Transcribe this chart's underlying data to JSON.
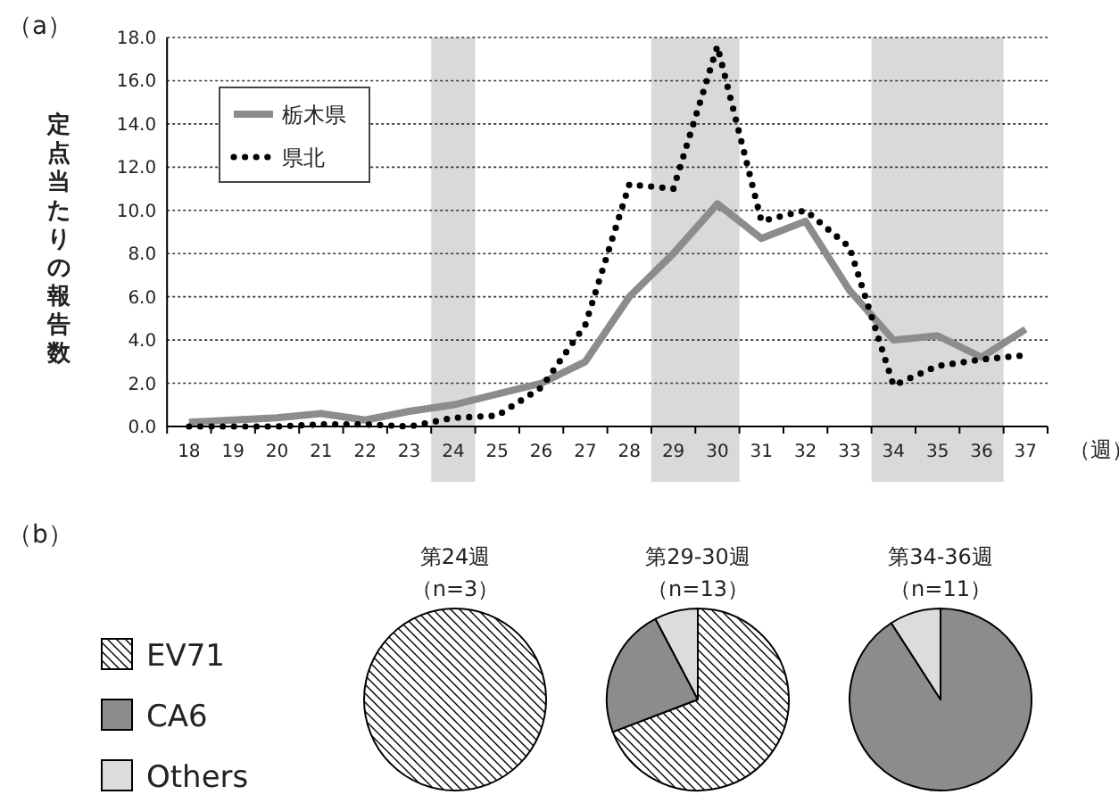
{
  "chart_data": [
    {
      "type": "line",
      "title": "（a）",
      "xlabel": "（週）",
      "ylabel": "定点当たりの報告数",
      "x": [
        18,
        19,
        20,
        21,
        22,
        23,
        24,
        25,
        26,
        27,
        28,
        29,
        30,
        31,
        32,
        33,
        34,
        35,
        36,
        37
      ],
      "xlim": [
        17.5,
        37.5
      ],
      "xticks": [
        18,
        19,
        20,
        21,
        22,
        23,
        24,
        25,
        26,
        27,
        28,
        29,
        30,
        31,
        32,
        33,
        34,
        35,
        36,
        37
      ],
      "ylim": [
        0,
        18
      ],
      "yticks": [
        {
          "value": 0,
          "label": "0.0"
        },
        {
          "value": 2,
          "label": "2.0"
        },
        {
          "value": 4,
          "label": "4.0"
        },
        {
          "value": 6,
          "label": "6.0"
        },
        {
          "value": 8,
          "label": "8.0"
        },
        {
          "value": 10,
          "label": "10.0"
        },
        {
          "value": 12,
          "label": "12.0"
        },
        {
          "value": 14,
          "label": "14.0"
        },
        {
          "value": 16,
          "label": "16.0"
        },
        {
          "value": 18,
          "label": "18.0"
        }
      ],
      "grid": "y",
      "legend": "top left",
      "marker": "none",
      "bands": [
        {
          "axis": "x",
          "from": 23.5,
          "to": 24.5,
          "color": "#d9d9d9"
        },
        {
          "axis": "x",
          "from": 28.5,
          "to": 30.5,
          "color": "#d9d9d9"
        },
        {
          "axis": "x",
          "from": 33.5,
          "to": 36.5,
          "color": "#d9d9d9"
        }
      ],
      "series": [
        {
          "name": "栃木県",
          "color": "#8c8c8c",
          "line_style": "solid",
          "values": [
            0.2,
            0.3,
            0.4,
            0.6,
            0.3,
            0.7,
            1.0,
            1.5,
            2.0,
            3.0,
            6.0,
            8.0,
            10.3,
            8.7,
            9.5,
            6.3,
            4.0,
            4.2,
            3.2,
            4.5
          ]
        },
        {
          "name": "県北",
          "color": "#000000",
          "line_style": "dotted",
          "values": [
            0.0,
            0.0,
            0.0,
            0.1,
            0.1,
            0.0,
            0.4,
            0.5,
            1.8,
            4.7,
            11.2,
            11.0,
            17.6,
            9.5,
            10.0,
            8.3,
            1.9,
            2.8,
            3.1,
            3.3
          ]
        }
      ]
    },
    {
      "type": "pie",
      "title": "第24週",
      "subtitle": "（n=3）",
      "annotations": [
        "（b）"
      ],
      "legend": "left",
      "categories": [
        "EV71",
        "CA6",
        "Others"
      ],
      "values": [
        100,
        0,
        0
      ],
      "colors": [
        "#ffffff",
        "#8c8c8c",
        "#dcdcdc"
      ]
    },
    {
      "type": "pie",
      "title": "第29-30週",
      "subtitle": "（n=13）",
      "categories": [
        null,
        null,
        null
      ],
      "values": [
        69.2,
        23.1,
        7.7
      ],
      "colors": [
        "#ffffff",
        "#8c8c8c",
        "#dcdcdc"
      ]
    },
    {
      "type": "pie",
      "title": "第34-36週",
      "subtitle": "（n=11）",
      "categories": [
        null,
        null,
        null
      ],
      "values": [
        0,
        90.9,
        9.1
      ],
      "colors": [
        "#ffffff",
        "#8c8c8c",
        "#dcdcdc"
      ]
    }
  ]
}
